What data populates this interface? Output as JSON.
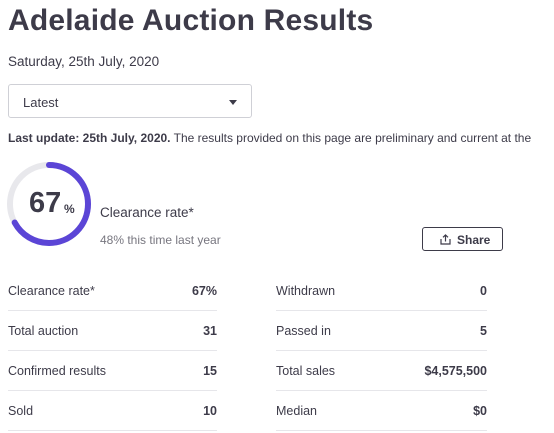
{
  "header": {
    "title": "Adelaide Auction Results",
    "date": "Saturday, 25th July, 2020"
  },
  "filter": {
    "selected": "Latest"
  },
  "update": {
    "bold": "Last update: 25th July, 2020.",
    "text": " The results provided on this page are preliminary and current at the"
  },
  "clearance": {
    "value": "67",
    "unit": "%",
    "fraction": 0.67,
    "label": "Clearance rate*",
    "last_year": "48% this time last year",
    "accent_color": "#5b45d6",
    "track_color": "#e8e8ec"
  },
  "share": {
    "label": "Share",
    "icon": "share-icon"
  },
  "stats_left": [
    {
      "label": "Clearance rate*",
      "value": "67%"
    },
    {
      "label": "Total auction",
      "value": "31"
    },
    {
      "label": "Confirmed results",
      "value": "15"
    },
    {
      "label": "Sold",
      "value": "10"
    }
  ],
  "stats_right": [
    {
      "label": "Withdrawn",
      "value": "0"
    },
    {
      "label": "Passed in",
      "value": "5"
    },
    {
      "label": "Total sales",
      "value": "$4,575,500"
    },
    {
      "label": "Median",
      "value": "$0"
    }
  ]
}
